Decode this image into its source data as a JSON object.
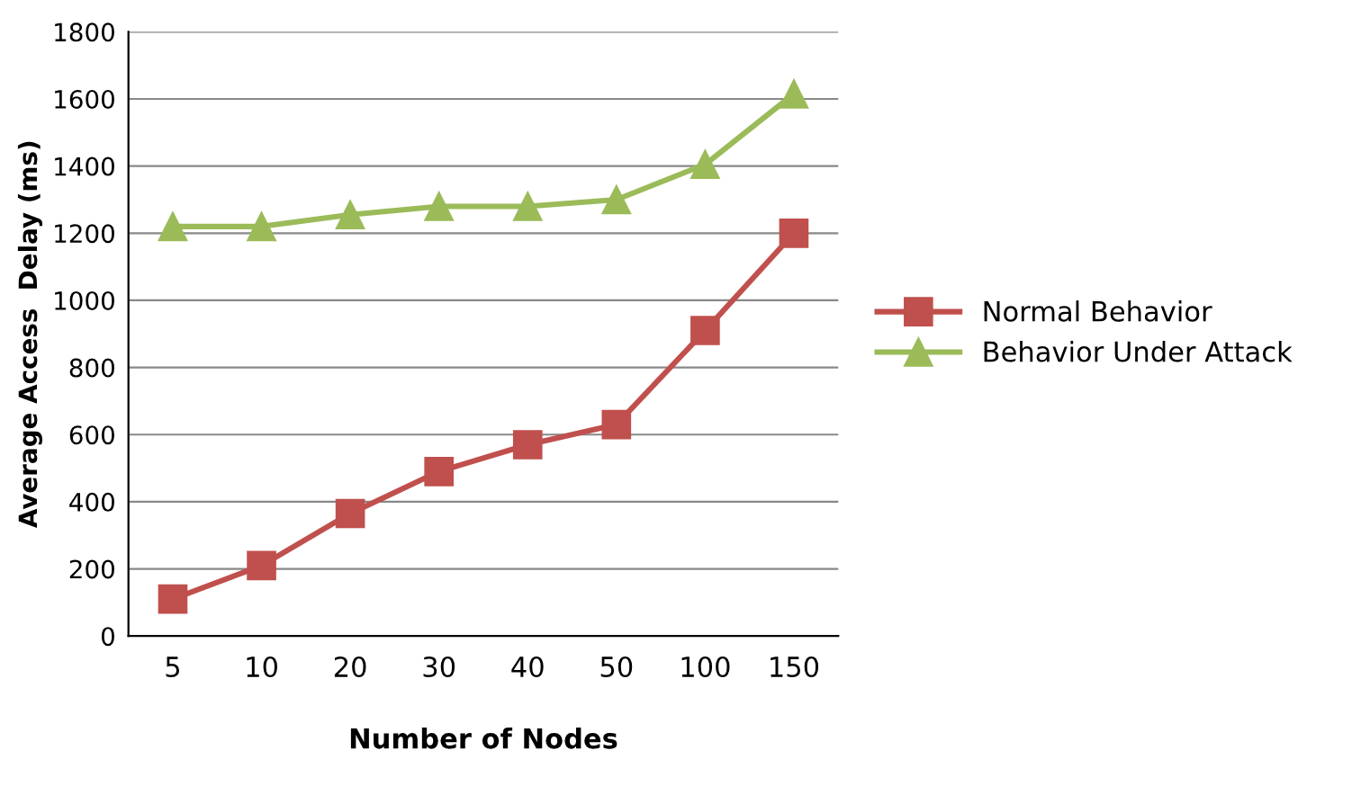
{
  "chart_data": {
    "type": "line",
    "xlabel": "Number of Nodes",
    "ylabel": "Average Access  Delay (ms)",
    "categories": [
      "5",
      "10",
      "20",
      "30",
      "40",
      "50",
      "100",
      "150"
    ],
    "series": [
      {
        "name": "Normal Behavior",
        "color": "#c0504d",
        "marker": "square",
        "values": [
          110,
          210,
          365,
          490,
          570,
          630,
          910,
          1200
        ]
      },
      {
        "name": "Behavior Under Attack",
        "color": "#9bbb59",
        "marker": "triangle",
        "values": [
          1220,
          1220,
          1255,
          1280,
          1280,
          1300,
          1405,
          1615
        ]
      }
    ],
    "ylim": [
      0,
      1800
    ],
    "yticks": [
      0,
      200,
      400,
      600,
      800,
      1000,
      1200,
      1400,
      1600,
      1800
    ],
    "grid": "y",
    "legend": "right"
  }
}
